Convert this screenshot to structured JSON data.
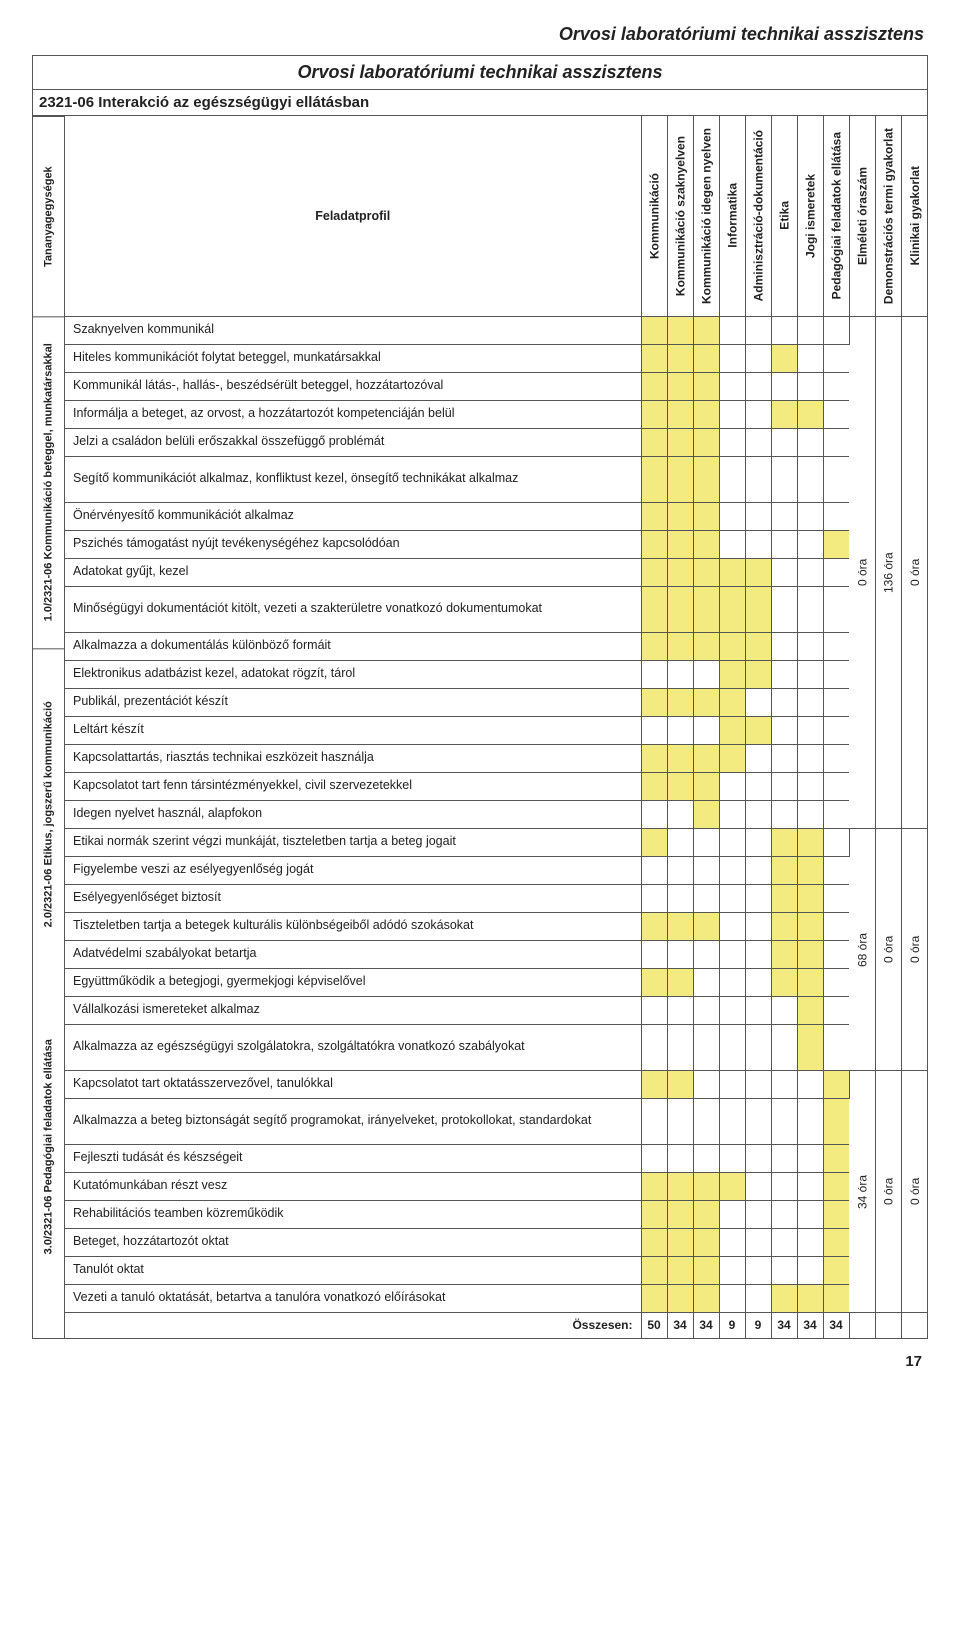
{
  "doc_header": "Orvosi laboratóriumi technikai asszisztens",
  "inner_title": "Orvosi laboratóriumi technikai asszisztens",
  "section_header": "2321-06 Interakció az egészségügyi ellátásban",
  "unit_header": "Tananyagegységek",
  "feladat_label": "Feladatprofil",
  "columns": [
    "Kommunikáció",
    "Kommunikáció szaknyelven",
    "Kommunikáció idegen nyelven",
    "Informatika",
    "Adminisztráció-dokumentáció",
    "Etika",
    "Jogi ismeretek",
    "Pedagógiai feladatok ellátása",
    "Elméleti óraszám",
    "Demonstrációs termi gyakorlat",
    "Klinikai gyakorlat"
  ],
  "groups": [
    {
      "unit_label": "1.0/2321-06\nKommunikáció beteggel, munkatársakkal",
      "hours": [
        "0 óra",
        "136 óra",
        "0 óra"
      ],
      "rows": [
        {
          "text": "Szaknyelven kommunikál",
          "marks": [
            1,
            1,
            1,
            0,
            0,
            0,
            0,
            0
          ]
        },
        {
          "text": "Hiteles kommunikációt folytat beteggel, munkatársakkal",
          "marks": [
            1,
            1,
            1,
            0,
            0,
            1,
            0,
            0
          ]
        },
        {
          "text": "Kommunikál látás-, hallás-, beszédsérült beteggel, hozzátartozóval",
          "marks": [
            1,
            1,
            1,
            0,
            0,
            0,
            0,
            0
          ]
        },
        {
          "text": "Informálja a beteget, az orvost, a hozzátartozót kompetenciáján belül",
          "marks": [
            1,
            1,
            1,
            0,
            0,
            1,
            1,
            0
          ]
        },
        {
          "text": "Jelzi a családon belüli erőszakkal összefüggő problémát",
          "marks": [
            1,
            1,
            1,
            0,
            0,
            0,
            0,
            0
          ]
        },
        {
          "text": "Segítő kommunikációt alkalmaz, konfliktust kezel, önsegítő technikákat alkalmaz",
          "marks": [
            1,
            1,
            1,
            0,
            0,
            0,
            0,
            0
          ],
          "tall": true
        },
        {
          "text": "Önérvényesítő kommunikációt alkalmaz",
          "marks": [
            1,
            1,
            1,
            0,
            0,
            0,
            0,
            0
          ]
        },
        {
          "text": "Pszichés támogatást nyújt tevékenységéhez kapcsolódóan",
          "marks": [
            1,
            1,
            1,
            0,
            0,
            0,
            0,
            1
          ]
        },
        {
          "text": "Adatokat gyűjt, kezel",
          "marks": [
            1,
            1,
            1,
            1,
            1,
            0,
            0,
            0
          ]
        },
        {
          "text": "Minőségügyi dokumentációt kitölt, vezeti a szakterületre vonatkozó dokumentumokat",
          "marks": [
            1,
            1,
            1,
            1,
            1,
            0,
            0,
            0
          ],
          "tall": true
        },
        {
          "text": "Alkalmazza a dokumentálás különböző formáit",
          "marks": [
            1,
            1,
            1,
            1,
            1,
            0,
            0,
            0
          ]
        },
        {
          "text": "Elektronikus adatbázist kezel, adatokat rögzít, tárol",
          "marks": [
            0,
            0,
            0,
            1,
            1,
            0,
            0,
            0
          ]
        },
        {
          "text": "Publikál, prezentációt készít",
          "marks": [
            1,
            1,
            1,
            1,
            0,
            0,
            0,
            0
          ]
        },
        {
          "text": "Leltárt készít",
          "marks": [
            0,
            0,
            0,
            1,
            1,
            0,
            0,
            0
          ]
        },
        {
          "text": "Kapcsolattartás, riasztás technikai eszközeit használja",
          "marks": [
            1,
            1,
            1,
            1,
            0,
            0,
            0,
            0
          ]
        },
        {
          "text": "Kapcsolatot tart fenn társintézményekkel, civil szervezetekkel",
          "marks": [
            1,
            1,
            1,
            0,
            0,
            0,
            0,
            0
          ]
        },
        {
          "text": "Idegen nyelvet használ, alapfokon",
          "marks": [
            0,
            0,
            1,
            0,
            0,
            0,
            0,
            0
          ]
        }
      ]
    },
    {
      "unit_label": "2.0/2321-06 Etikus,\njogszerű kommunikáció",
      "hours": [
        "68 óra",
        "0 óra",
        "0 óra"
      ],
      "rows": [
        {
          "text": "Etikai normák szerint végzi munkáját, tiszteletben tartja a beteg jogait",
          "marks": [
            1,
            0,
            0,
            0,
            0,
            1,
            1,
            0
          ]
        },
        {
          "text": "Figyelembe veszi az esélyegyenlőség jogát",
          "marks": [
            0,
            0,
            0,
            0,
            0,
            1,
            1,
            0
          ]
        },
        {
          "text": "Esélyegyenlőséget biztosít",
          "marks": [
            0,
            0,
            0,
            0,
            0,
            1,
            1,
            0
          ]
        },
        {
          "text": "Tiszteletben tartja a betegek kulturális különbségeiből adódó szokásokat",
          "marks": [
            1,
            1,
            1,
            0,
            0,
            1,
            1,
            0
          ]
        },
        {
          "text": "Adatvédelmi szabályokat betartja",
          "marks": [
            0,
            0,
            0,
            0,
            0,
            1,
            1,
            0
          ]
        },
        {
          "text": "Együttműködik a betegjogi, gyermekjogi képviselővel",
          "marks": [
            1,
            1,
            0,
            0,
            0,
            1,
            1,
            0
          ]
        },
        {
          "text": "Vállalkozási ismereteket alkalmaz",
          "marks": [
            0,
            0,
            0,
            0,
            0,
            0,
            1,
            0
          ]
        },
        {
          "text": "Alkalmazza az egészségügyi szolgálatokra, szolgáltatókra vonatkozó szabályokat",
          "marks": [
            0,
            0,
            0,
            0,
            0,
            0,
            1,
            0
          ],
          "tall": true
        }
      ]
    },
    {
      "unit_label": "3.0/2321-06 Pedagógiai\nfeladatok ellátása",
      "hours": [
        "34 óra",
        "0 óra",
        "0 óra"
      ],
      "rows": [
        {
          "text": "Kapcsolatot tart oktatásszervezővel, tanulókkal",
          "marks": [
            1,
            1,
            0,
            0,
            0,
            0,
            0,
            1
          ]
        },
        {
          "text": "Alkalmazza a beteg biztonságát segítő programokat, irányelveket, protokollokat, standardokat",
          "marks": [
            0,
            0,
            0,
            0,
            0,
            0,
            0,
            1
          ],
          "tall": true
        },
        {
          "text": "Fejleszti tudását és készségeit",
          "marks": [
            0,
            0,
            0,
            0,
            0,
            0,
            0,
            1
          ]
        },
        {
          "text": "Kutatómunkában részt vesz",
          "marks": [
            1,
            1,
            1,
            1,
            0,
            0,
            0,
            1
          ]
        },
        {
          "text": "Rehabilitációs teamben közreműködik",
          "marks": [
            1,
            1,
            1,
            0,
            0,
            0,
            0,
            1
          ]
        },
        {
          "text": "Beteget, hozzátartozót oktat",
          "marks": [
            1,
            1,
            1,
            0,
            0,
            0,
            0,
            1
          ]
        },
        {
          "text": "Tanulót oktat",
          "marks": [
            1,
            1,
            1,
            0,
            0,
            0,
            0,
            1
          ]
        },
        {
          "text": "Vezeti a tanuló oktatását, betartva a tanulóra vonatkozó előírásokat",
          "marks": [
            1,
            1,
            1,
            0,
            0,
            1,
            1,
            1
          ]
        }
      ]
    }
  ],
  "totals_label": "Összesen:",
  "totals": [
    "50",
    "34",
    "34",
    "9",
    "9",
    "34",
    "34",
    "34",
    "",
    "",
    ""
  ],
  "page_number": "17"
}
